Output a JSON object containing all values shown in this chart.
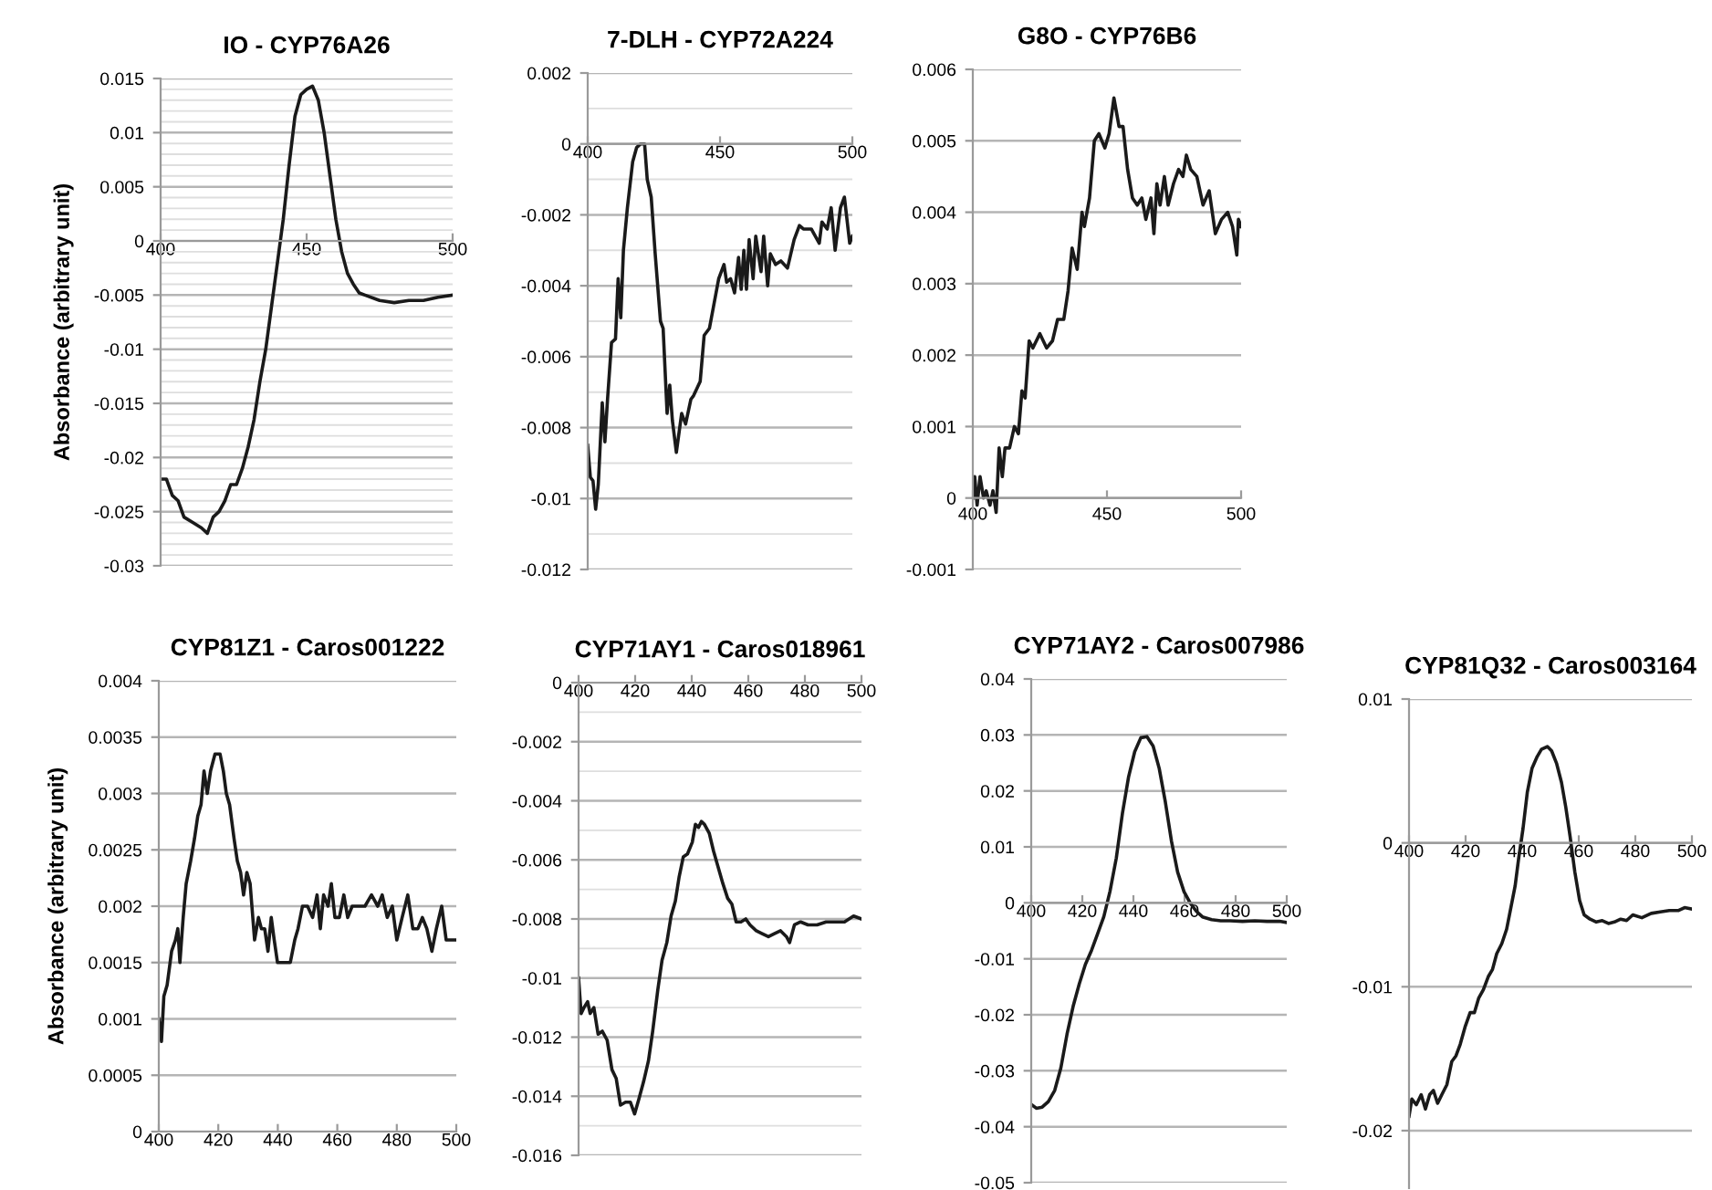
{
  "chart_data": [
    {
      "type": "line",
      "title": "IO - CYP76A26",
      "ylabel": "Absorbance (arbitrary unit)",
      "grid": "y",
      "xlim": [
        400,
        500
      ],
      "xticks": [
        400,
        450,
        500
      ],
      "ylim": [
        -0.03,
        0.015
      ],
      "yticks": [
        -0.03,
        -0.025,
        -0.02,
        -0.015,
        -0.01,
        -0.005,
        0,
        0.005,
        0.01,
        0.015,
        {
          "value": -0.029,
          "label": null
        },
        {
          "value": -0.028,
          "label": null
        },
        {
          "value": -0.027,
          "label": null
        },
        {
          "value": -0.026,
          "label": null
        },
        {
          "value": -0.024,
          "label": null
        },
        {
          "value": -0.023,
          "label": null
        },
        {
          "value": -0.022,
          "label": null
        },
        {
          "value": -0.021,
          "label": null
        },
        {
          "value": -0.019,
          "label": null
        },
        {
          "value": -0.018,
          "label": null
        },
        {
          "value": -0.017,
          "label": null
        },
        {
          "value": -0.016,
          "label": null
        },
        {
          "value": -0.014,
          "label": null
        },
        {
          "value": -0.013,
          "label": null
        },
        {
          "value": -0.012,
          "label": null
        },
        {
          "value": -0.011,
          "label": null
        },
        {
          "value": -0.009,
          "label": null
        },
        {
          "value": -0.008,
          "label": null
        },
        {
          "value": -0.007,
          "label": null
        },
        {
          "value": -0.006,
          "label": null
        },
        {
          "value": -0.004,
          "label": null
        },
        {
          "value": -0.003,
          "label": null
        },
        {
          "value": -0.002,
          "label": null
        },
        {
          "value": -0.001,
          "label": null
        },
        {
          "value": 0.001,
          "label": null
        },
        {
          "value": 0.002,
          "label": null
        },
        {
          "value": 0.003,
          "label": null
        },
        {
          "value": 0.004,
          "label": null
        },
        {
          "value": 0.006,
          "label": null
        },
        {
          "value": 0.007,
          "label": null
        },
        {
          "value": 0.008,
          "label": null
        },
        {
          "value": 0.009,
          "label": null
        },
        {
          "value": 0.011,
          "label": null
        },
        {
          "value": 0.012,
          "label": null
        },
        {
          "value": 0.013,
          "label": null
        },
        {
          "value": 0.014,
          "label": null
        }
      ],
      "series": [
        {
          "color": "#1a1a1a",
          "x": [
            400,
            402,
            404,
            406,
            408,
            411,
            414,
            416,
            418,
            420,
            422,
            424,
            426,
            428,
            430,
            432,
            434,
            436,
            438,
            440,
            442,
            444,
            446,
            448,
            450,
            452,
            454,
            456,
            458,
            460,
            462,
            464,
            466,
            468,
            470,
            475,
            480,
            485,
            490,
            495,
            500
          ],
          "values": [
            -0.022,
            -0.022,
            -0.0235,
            -0.024,
            -0.0255,
            -0.026,
            -0.0265,
            -0.027,
            -0.0255,
            -0.025,
            -0.024,
            -0.0225,
            -0.0225,
            -0.021,
            -0.019,
            -0.0165,
            -0.013,
            -0.01,
            -0.006,
            -0.002,
            0.002,
            0.007,
            0.0115,
            0.0135,
            0.014,
            0.0143,
            0.013,
            0.01,
            0.006,
            0.002,
            -0.001,
            -0.003,
            -0.004,
            -0.0048,
            -0.005,
            -0.0055,
            -0.0057,
            -0.0055,
            -0.0055,
            -0.0052,
            -0.005
          ]
        }
      ]
    },
    {
      "type": "line",
      "title": "7-DLH - CYP72A224",
      "grid": "y",
      "xlim": [
        400,
        500
      ],
      "xticks": [
        400,
        450,
        500
      ],
      "ylim": [
        -0.012,
        0.002
      ],
      "yticks": [
        -0.012,
        -0.01,
        -0.008,
        -0.006,
        -0.004,
        -0.002,
        0,
        0.002,
        {
          "value": -0.011,
          "label": null
        },
        {
          "value": -0.009,
          "label": null
        },
        {
          "value": -0.007,
          "label": null
        },
        {
          "value": -0.005,
          "label": null
        },
        {
          "value": -0.003,
          "label": null
        },
        {
          "value": -0.001,
          "label": null
        },
        {
          "value": 0.001,
          "label": null
        }
      ],
      "series": [
        {
          "color": "#1a1a1a",
          "x": [
            400,
            401,
            402,
            403,
            404,
            405.5,
            406.5,
            407.5,
            409,
            410.5,
            411.5,
            412.5,
            413.5,
            415,
            417,
            418.5,
            420,
            421.5,
            422.5,
            424,
            425.5,
            427.5,
            428.5,
            430,
            431,
            432,
            433.5,
            435.5,
            437,
            439,
            440,
            442.5,
            444,
            446,
            447.5,
            449.5,
            451.5,
            452.5,
            454,
            455.5,
            457,
            458,
            459,
            460,
            461,
            462.5,
            463.5,
            465.5,
            466.5,
            468,
            469,
            471,
            473,
            475.5,
            478,
            480,
            481.5,
            484.5,
            487.5,
            488.5,
            490.5,
            492,
            493.5,
            495.5,
            497,
            499,
            500
          ],
          "values": [
            -0.0085,
            -0.0094,
            -0.0095,
            -0.0103,
            -0.0096,
            -0.0073,
            -0.0084,
            -0.0072,
            -0.0056,
            -0.0055,
            -0.0038,
            -0.0049,
            -0.003,
            -0.0018,
            -0.0005,
            -0.0001,
            0.0,
            0.0,
            -0.001,
            -0.0015,
            -0.0031,
            -0.005,
            -0.0052,
            -0.0076,
            -0.0068,
            -0.0078,
            -0.0087,
            -0.0076,
            -0.0079,
            -0.0072,
            -0.0071,
            -0.0067,
            -0.0054,
            -0.0052,
            -0.0046,
            -0.0038,
            -0.0034,
            -0.0039,
            -0.0038,
            -0.0042,
            -0.0032,
            -0.0041,
            -0.003,
            -0.0041,
            -0.0027,
            -0.0038,
            -0.0026,
            -0.0036,
            -0.0026,
            -0.004,
            -0.0031,
            -0.0034,
            -0.0033,
            -0.0035,
            -0.0027,
            -0.0023,
            -0.0024,
            -0.0024,
            -0.0028,
            -0.0022,
            -0.0024,
            -0.0018,
            -0.003,
            -0.0018,
            -0.0015,
            -0.0028,
            -0.0026
          ]
        }
      ]
    },
    {
      "type": "line",
      "title": "G8O - CYP76B6",
      "grid": "y",
      "xlim": [
        400,
        500
      ],
      "xticks": [
        400,
        450,
        500
      ],
      "ylim": [
        -0.001,
        0.006
      ],
      "yticks": [
        -0.001,
        0,
        0.001,
        0.002,
        0.003,
        0.004,
        0.005,
        0.006
      ],
      "series": [
        {
          "color": "#1a1a1a",
          "x": [
            400,
            400.7,
            401.6,
            402.7,
            404,
            405,
            406.4,
            407.5,
            408.7,
            409.8,
            411,
            412,
            413.7,
            415.5,
            417,
            418.3,
            419.5,
            421,
            422.4,
            425,
            427.5,
            429.7,
            431.6,
            433.9,
            435.5,
            437,
            438.9,
            440.7,
            441.6,
            443.5,
            445.3,
            447,
            449.2,
            450.8,
            452.6,
            454.5,
            456,
            457.7,
            459.5,
            461.3,
            463,
            464.5,
            466.4,
            467.5,
            468.6,
            469.8,
            471.4,
            472.8,
            474.8,
            476.7,
            478.3,
            479.6,
            481.2,
            483.5,
            485.8,
            488.1,
            490.4,
            492.7,
            495,
            496.8,
            498.4,
            499,
            500
          ],
          "values": [
            0.0,
            0.0003,
            -0.0001,
            0.0003,
            0.0,
            0.0001,
            -0.0001,
            0.0001,
            -0.0002,
            0.0007,
            0.0003,
            0.0007,
            0.0007,
            0.001,
            0.0009,
            0.0015,
            0.0014,
            0.0022,
            0.0021,
            0.0023,
            0.0021,
            0.0022,
            0.0025,
            0.0025,
            0.0029,
            0.0035,
            0.0032,
            0.004,
            0.0038,
            0.0042,
            0.005,
            0.0051,
            0.0049,
            0.0051,
            0.0056,
            0.0052,
            0.0052,
            0.0046,
            0.0042,
            0.0041,
            0.0042,
            0.0039,
            0.0042,
            0.0037,
            0.0044,
            0.0041,
            0.0045,
            0.0041,
            0.0044,
            0.0046,
            0.0045,
            0.0048,
            0.0046,
            0.0045,
            0.0041,
            0.0043,
            0.0037,
            0.0039,
            0.004,
            0.0038,
            0.0034,
            0.0039,
            0.0038
          ]
        }
      ]
    },
    {
      "type": "line",
      "title": "CYP81Z1 - Caros001222",
      "ylabel": "Absorbance (arbitrary unit)",
      "grid": "y",
      "xlim": [
        400,
        500
      ],
      "xticks": [
        400,
        420,
        440,
        460,
        480,
        500
      ],
      "ylim": [
        0,
        0.004
      ],
      "yticks": [
        0,
        0.0005,
        0.001,
        0.0015,
        0.002,
        0.0025,
        0.003,
        0.0035,
        0.004
      ],
      "series": [
        {
          "color": "#1a1a1a",
          "x": [
            400,
            400.9,
            401.7,
            402.8,
            404.3,
            405.6,
            406.4,
            407.1,
            408.2,
            409.2,
            410.7,
            412,
            413.1,
            414.2,
            415.2,
            416.3,
            417.4,
            418.9,
            420.6,
            421.7,
            422.7,
            423.8,
            425.3,
            426.4,
            427.5,
            428.5,
            429.6,
            430.7,
            432.2,
            433.5,
            434.5,
            435.6,
            436.7,
            437.8,
            438.8,
            439.9,
            441.4,
            442.9,
            444.2,
            445.7,
            446.8,
            448.3,
            450,
            451.7,
            453.2,
            454.3,
            455.4,
            456.9,
            458,
            459.2,
            460.7,
            462.2,
            463.5,
            465,
            467.2,
            469.3,
            471.5,
            473.6,
            475.1,
            476.8,
            478.5,
            480,
            481.8,
            483.7,
            485.4,
            487.1,
            488.6,
            490.1,
            491.8,
            493.3,
            495.1,
            496.6,
            498.3,
            500
          ],
          "values": [
            0.001,
            0.0008,
            0.0012,
            0.0013,
            0.0016,
            0.0017,
            0.0018,
            0.0015,
            0.0019,
            0.0022,
            0.0024,
            0.0026,
            0.0028,
            0.0029,
            0.0032,
            0.003,
            0.0032,
            0.00335,
            0.00335,
            0.0032,
            0.003,
            0.0029,
            0.0026,
            0.0024,
            0.0023,
            0.0021,
            0.0023,
            0.0022,
            0.0017,
            0.0019,
            0.0018,
            0.0018,
            0.0016,
            0.0019,
            0.0017,
            0.0015,
            0.0015,
            0.0015,
            0.0015,
            0.0017,
            0.0018,
            0.002,
            0.002,
            0.0019,
            0.0021,
            0.0018,
            0.0021,
            0.002,
            0.0022,
            0.0019,
            0.0019,
            0.0021,
            0.0019,
            0.002,
            0.002,
            0.002,
            0.0021,
            0.002,
            0.0021,
            0.0019,
            0.002,
            0.0017,
            0.0019,
            0.0021,
            0.0018,
            0.0018,
            0.0019,
            0.0018,
            0.0016,
            0.0018,
            0.002,
            0.0017,
            0.0017,
            0.0017
          ]
        }
      ]
    },
    {
      "type": "line",
      "title": "CYP71AY1 - Caros018961",
      "grid": "y",
      "xlim": [
        400,
        500
      ],
      "xticks": [
        400,
        420,
        440,
        460,
        480,
        500
      ],
      "ylim": [
        -0.016,
        0
      ],
      "yticks": [
        -0.016,
        -0.014,
        -0.012,
        -0.01,
        -0.008,
        -0.006,
        -0.004,
        -0.002,
        0,
        {
          "value": -0.015,
          "label": null
        },
        {
          "value": -0.013,
          "label": null
        },
        {
          "value": -0.011,
          "label": null
        },
        {
          "value": -0.009,
          "label": null
        },
        {
          "value": -0.007,
          "label": null
        },
        {
          "value": -0.005,
          "label": null
        },
        {
          "value": -0.003,
          "label": null
        },
        {
          "value": -0.001,
          "label": null
        }
      ],
      "series": [
        {
          "color": "#1a1a1a",
          "x": [
            400,
            400.9,
            401.9,
            403.2,
            404.1,
            405.4,
            406.9,
            408.4,
            410.1,
            411.8,
            413.3,
            414.8,
            416.6,
            418.3,
            419.8,
            421.3,
            423,
            424.7,
            426.2,
            428,
            429.5,
            431.2,
            432.7,
            434.2,
            435.5,
            437,
            438.5,
            440.2,
            441.3,
            442.4,
            443.4,
            444.5,
            446.2,
            447.7,
            449.2,
            451,
            452.7,
            454.2,
            455.7,
            457.4,
            459.1,
            460.6,
            462.8,
            464.9,
            467.1,
            469.2,
            471.4,
            473.5,
            474.6,
            476.3,
            478.5,
            481.1,
            484.3,
            487.5,
            490.8,
            494,
            497.2,
            500
          ],
          "values": [
            -0.01,
            -0.0112,
            -0.011,
            -0.0108,
            -0.0112,
            -0.011,
            -0.0119,
            -0.0118,
            -0.0121,
            -0.0131,
            -0.0134,
            -0.0143,
            -0.0142,
            -0.0142,
            -0.0146,
            -0.0141,
            -0.0135,
            -0.0128,
            -0.0118,
            -0.0104,
            -0.0094,
            -0.0088,
            -0.0079,
            -0.0074,
            -0.0066,
            -0.0059,
            -0.0058,
            -0.0054,
            -0.0048,
            -0.0049,
            -0.0047,
            -0.0048,
            -0.0051,
            -0.0057,
            -0.0062,
            -0.0068,
            -0.0073,
            -0.0075,
            -0.0081,
            -0.0081,
            -0.008,
            -0.0082,
            -0.0084,
            -0.0085,
            -0.0086,
            -0.0085,
            -0.0084,
            -0.0086,
            -0.0088,
            -0.0082,
            -0.0081,
            -0.0082,
            -0.0082,
            -0.0081,
            -0.0081,
            -0.0081,
            -0.0079,
            -0.008
          ]
        }
      ]
    },
    {
      "type": "line",
      "title": "CYP71AY2 - Caros007986",
      "grid": "y",
      "xlim": [
        400,
        500
      ],
      "xticks": [
        400,
        420,
        440,
        460,
        480,
        500
      ],
      "ylim": [
        -0.05,
        0.04
      ],
      "yticks": [
        -0.05,
        -0.04,
        -0.03,
        -0.02,
        -0.01,
        0,
        0.01,
        0.02,
        0.03,
        0.04
      ],
      "series": [
        {
          "color": "#1a1a1a",
          "x": [
            400,
            402,
            404.3,
            406.7,
            409.2,
            411.6,
            414,
            416.4,
            418.8,
            421.2,
            423.6,
            426,
            428.4,
            430.8,
            433.3,
            435.7,
            438.1,
            440.5,
            442.9,
            445.3,
            447.7,
            450.1,
            452.5,
            454.9,
            457.3,
            459.8,
            462.2,
            464.6,
            467,
            470.6,
            474.2,
            477.8,
            482.7,
            487.5,
            492.3,
            497.1,
            500
          ],
          "values": [
            -0.036,
            -0.0367,
            -0.0365,
            -0.0355,
            -0.0335,
            -0.0295,
            -0.0235,
            -0.0185,
            -0.0145,
            -0.011,
            -0.0085,
            -0.0055,
            -0.0025,
            0.002,
            0.008,
            0.016,
            0.0225,
            0.027,
            0.0295,
            0.0297,
            0.028,
            0.024,
            0.018,
            0.011,
            0.0055,
            0.002,
            0.0,
            -0.0015,
            -0.0025,
            -0.003,
            -0.0032,
            -0.0032,
            -0.0033,
            -0.0032,
            -0.0033,
            -0.0033,
            -0.0035
          ]
        }
      ]
    },
    {
      "type": "line",
      "title": "CYP81Q32 - Caros003164",
      "grid": "y",
      "xlim": [
        400,
        500
      ],
      "xticks": [
        400,
        420,
        440,
        460,
        480,
        500
      ],
      "ylim": [
        -0.024,
        0.01
      ],
      "yticks": [
        -0.02,
        -0.01,
        0,
        0.01
      ],
      "series": [
        {
          "color": "#1a1a1a",
          "x": [
            400,
            401,
            402.6,
            404.3,
            405.8,
            407.3,
            408.6,
            410.1,
            411.6,
            413.4,
            415.1,
            416.6,
            418.1,
            419.8,
            421.6,
            423.1,
            424.6,
            426.3,
            428,
            429.5,
            431,
            432.8,
            434.5,
            436,
            437.5,
            438.8,
            440.3,
            441.8,
            443.5,
            445.3,
            446.8,
            448.9,
            450.4,
            452.2,
            453.9,
            455.4,
            456.9,
            458.6,
            460.3,
            461.9,
            464,
            466.2,
            468.3,
            470.5,
            472.6,
            474.8,
            476.9,
            479.1,
            482.3,
            485.6,
            488.8,
            492,
            495.3,
            497.4,
            500
          ],
          "values": [
            -0.019,
            -0.0178,
            -0.0182,
            -0.0175,
            -0.0185,
            -0.0175,
            -0.0172,
            -0.0181,
            -0.0175,
            -0.0168,
            -0.0152,
            -0.0148,
            -0.014,
            -0.0128,
            -0.0118,
            -0.0118,
            -0.0108,
            -0.0102,
            -0.0093,
            -0.0088,
            -0.0077,
            -0.007,
            -0.006,
            -0.0045,
            -0.003,
            -0.001,
            0.001,
            0.0035,
            0.0052,
            0.006,
            0.0065,
            0.0067,
            0.0064,
            0.0055,
            0.0042,
            0.0025,
            0.0005,
            -0.002,
            -0.004,
            -0.005,
            -0.0053,
            -0.0055,
            -0.0054,
            -0.0056,
            -0.0055,
            -0.0053,
            -0.0054,
            -0.005,
            -0.0052,
            -0.0049,
            -0.0048,
            -0.0047,
            -0.0047,
            -0.0045,
            -0.0046
          ]
        }
      ]
    }
  ]
}
